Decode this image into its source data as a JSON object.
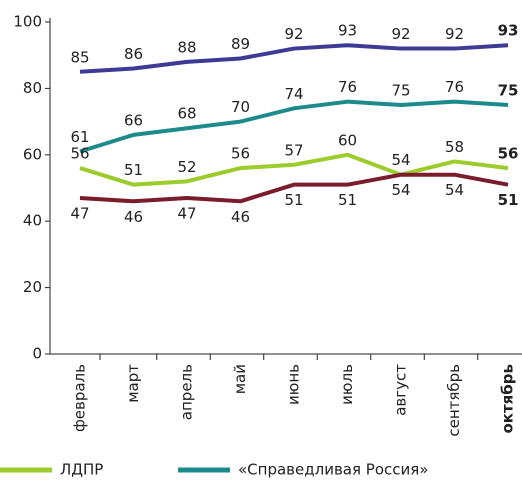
{
  "chart_data": {
    "type": "line",
    "categories": [
      "февраль",
      "март",
      "апрель",
      "май",
      "июнь",
      "июль",
      "август",
      "сентябрь",
      "октябрь"
    ],
    "series": [
      {
        "color": "#3d3b96",
        "values": [
          85,
          86,
          88,
          89,
          92,
          93,
          92,
          92,
          93
        ]
      },
      {
        "name": "«Справедливая Россия»",
        "color": "#1d8a8c",
        "values": [
          61,
          66,
          68,
          70,
          74,
          76,
          75,
          76,
          75
        ]
      },
      {
        "name": "ЛДПР",
        "color": "#9ccc2c",
        "values": [
          56,
          51,
          52,
          56,
          57,
          60,
          54,
          58,
          56
        ]
      },
      {
        "color": "#7b1c2c",
        "values": [
          47,
          46,
          47,
          46,
          51,
          51,
          54,
          54,
          51
        ]
      }
    ],
    "ylim": [
      0,
      100
    ],
    "yticks": [
      0,
      20,
      40,
      60,
      80,
      100
    ]
  }
}
